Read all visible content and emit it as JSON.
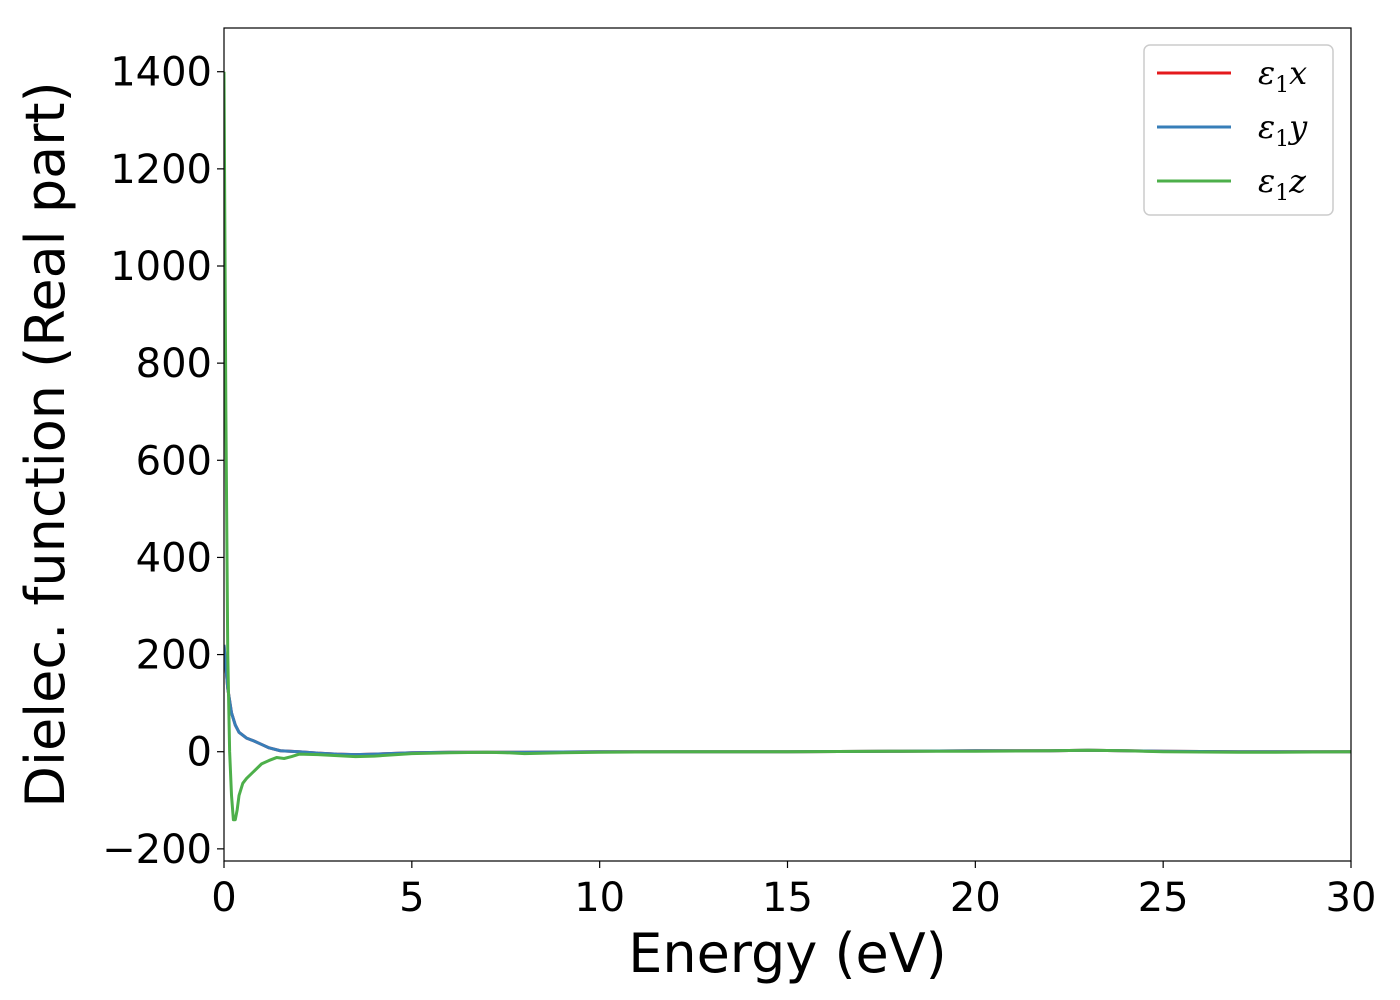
{
  "chart_data": {
    "type": "line",
    "xlabel": "Energy (eV)",
    "ylabel": "Dielec. function (Real part)",
    "xlim": [
      0,
      30
    ],
    "ylim": [
      -225,
      1490
    ],
    "x_ticks": [
      0,
      5,
      10,
      15,
      20,
      25,
      30
    ],
    "x_tick_labels": [
      "0",
      "5",
      "10",
      "15",
      "20",
      "25",
      "30"
    ],
    "y_ticks": [
      -200,
      0,
      200,
      400,
      600,
      800,
      1000,
      1200,
      1400
    ],
    "y_tick_labels": [
      "−200",
      "0",
      "200",
      "400",
      "600",
      "800",
      "1000",
      "1200",
      "1400"
    ],
    "grid": false,
    "legend_position": "top-right",
    "series": [
      {
        "name": "ε1x",
        "legend_base": "ε",
        "legend_sub": "1",
        "legend_var": "x",
        "color": "#e41a1c",
        "x": [
          0,
          0.1,
          0.2,
          0.3,
          0.4,
          0.6,
          0.8,
          1.0,
          1.2,
          1.5,
          2,
          2.5,
          3,
          3.5,
          4,
          5,
          6,
          7,
          8,
          10,
          12,
          15,
          18,
          20,
          22,
          23,
          24,
          25,
          27,
          28,
          30
        ],
        "y": [
          220,
          130,
          80,
          55,
          40,
          28,
          22,
          15,
          8,
          2,
          0,
          -3,
          -5,
          -6,
          -5,
          -2,
          -1,
          -1,
          -1,
          0,
          0,
          0,
          1,
          2,
          2,
          3,
          2,
          1,
          0,
          0,
          0
        ]
      },
      {
        "name": "ε1y",
        "legend_base": "ε",
        "legend_sub": "1",
        "legend_var": "y",
        "color": "#377eb8",
        "x": [
          0,
          0.1,
          0.2,
          0.3,
          0.4,
          0.6,
          0.8,
          1.0,
          1.2,
          1.5,
          2,
          2.5,
          3,
          3.5,
          4,
          5,
          6,
          7,
          8,
          10,
          12,
          15,
          18,
          20,
          22,
          23,
          24,
          25,
          27,
          28,
          30
        ],
        "y": [
          220,
          130,
          80,
          55,
          40,
          28,
          22,
          15,
          8,
          2,
          0,
          -3,
          -5,
          -6,
          -5,
          -2,
          -1,
          -1,
          -1,
          0,
          0,
          0,
          1,
          2,
          2,
          3,
          2,
          1,
          0,
          0,
          0
        ]
      },
      {
        "name": "ε1z",
        "legend_base": "ε",
        "legend_sub": "1",
        "legend_var": "z",
        "color": "#4daf4a",
        "x": [
          0,
          0.05,
          0.1,
          0.15,
          0.2,
          0.25,
          0.3,
          0.35,
          0.4,
          0.5,
          0.6,
          0.8,
          1.0,
          1.2,
          1.4,
          1.6,
          1.8,
          2.0,
          2.5,
          3,
          3.5,
          4,
          5,
          6,
          7,
          7.5,
          8,
          9,
          10,
          12,
          15,
          18,
          20,
          22,
          23,
          24,
          25,
          27,
          28,
          30
        ],
        "y": [
          1400,
          700,
          200,
          0,
          -90,
          -140,
          -140,
          -120,
          -90,
          -65,
          -55,
          -40,
          -25,
          -18,
          -12,
          -14,
          -10,
          -5,
          -6,
          -8,
          -10,
          -9,
          -4,
          -2,
          -1,
          -2,
          -4,
          -2,
          -1,
          0,
          0,
          1,
          1,
          2,
          3,
          2,
          0,
          -1,
          -1,
          0
        ]
      }
    ]
  }
}
